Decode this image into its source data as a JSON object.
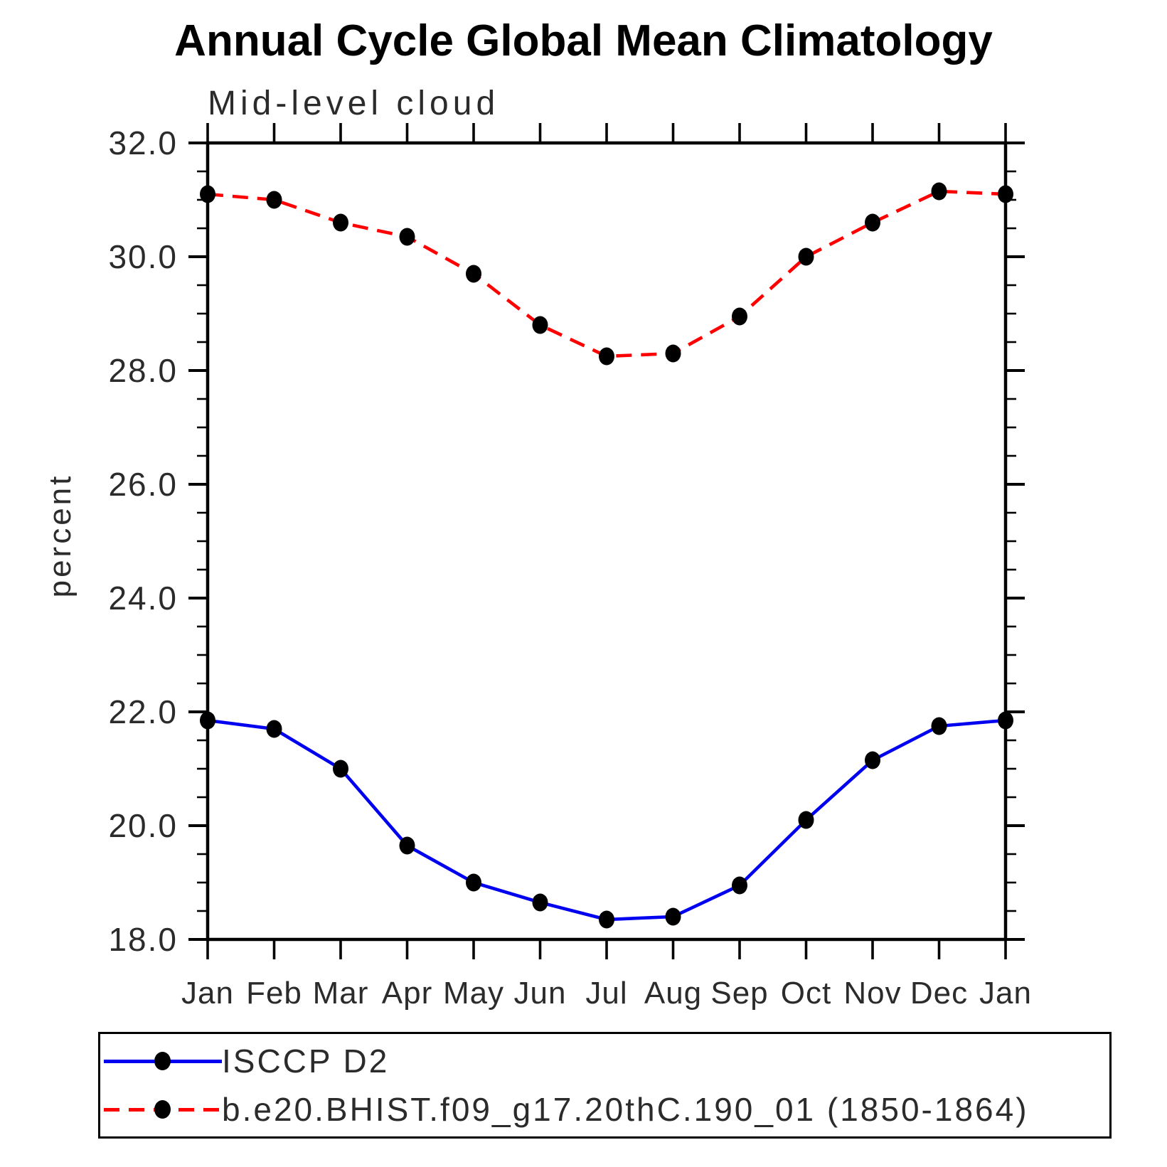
{
  "header": {
    "title": "Annual Cycle Global Mean Climatology",
    "subtitle": "Mid-level cloud"
  },
  "axes": {
    "y_title": "percent",
    "y_tick_labels": [
      "18.0",
      "20.0",
      "22.0",
      "24.0",
      "26.0",
      "28.0",
      "30.0",
      "32.0"
    ],
    "x_tick_labels": [
      "Jan",
      "Feb",
      "Mar",
      "Apr",
      "May",
      "Jun",
      "Jul",
      "Aug",
      "Sep",
      "Oct",
      "Nov",
      "Dec",
      "Jan"
    ]
  },
  "chart_data": {
    "type": "line",
    "title": "Annual Cycle Global Mean Climatology",
    "subtitle": "Mid-level cloud",
    "xlabel": "",
    "ylabel": "percent",
    "ylim": [
      18.0,
      32.0
    ],
    "y_major_step": 2.0,
    "y_minor_step": 0.5,
    "grid": false,
    "legend_position": "bottom",
    "categories": [
      "Jan",
      "Feb",
      "Mar",
      "Apr",
      "May",
      "Jun",
      "Jul",
      "Aug",
      "Sep",
      "Oct",
      "Nov",
      "Dec",
      "Jan"
    ],
    "series": [
      {
        "name": "ISCCP D2",
        "color": "#0000f0",
        "line_style": "solid",
        "marker": "filled-circle",
        "marker_color": "#000000",
        "values": [
          21.85,
          21.7,
          21.0,
          19.65,
          19.0,
          18.65,
          18.35,
          18.4,
          18.95,
          20.1,
          21.15,
          21.75,
          21.85
        ]
      },
      {
        "name": "b.e20.BHIST.f09_g17.20thC.190_01 (1850-1864)",
        "color": "#ff0000",
        "line_style": "dashed",
        "marker": "filled-circle",
        "marker_color": "#000000",
        "values": [
          31.1,
          31.0,
          30.6,
          30.35,
          29.7,
          28.8,
          28.25,
          28.3,
          28.95,
          30.0,
          30.6,
          31.15,
          31.1
        ]
      }
    ]
  },
  "legend": {
    "items": [
      {
        "label": "ISCCP D2",
        "color": "#0000f0",
        "style": "solid"
      },
      {
        "label": "b.e20.BHIST.f09_g17.20thC.190_01 (1850-1864)",
        "color": "#ff0000",
        "style": "dashed"
      }
    ]
  },
  "colors": {
    "axis": "#000000",
    "marker": "#000000",
    "series_blue": "#0000f0",
    "series_red": "#ff0000"
  }
}
